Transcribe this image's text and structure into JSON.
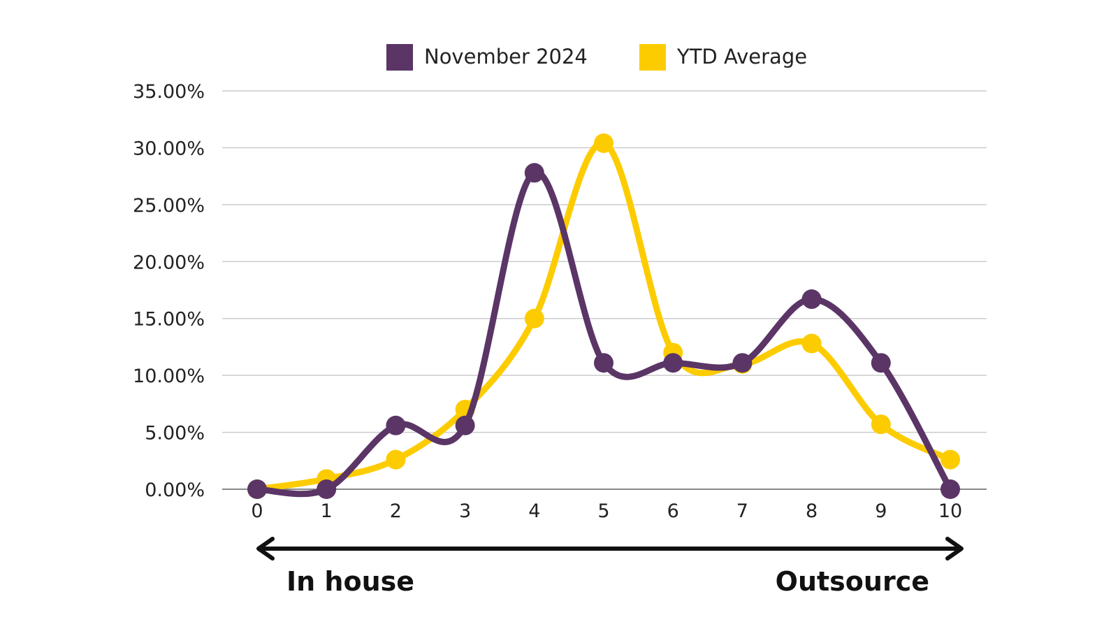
{
  "colors": {
    "november": "#5a3566",
    "ytd": "#fccc00",
    "grid": "#cccccc",
    "axis": "#888888",
    "arrow": "#111111"
  },
  "chart_data": {
    "type": "line",
    "smooth": true,
    "x": [
      0,
      1,
      2,
      3,
      4,
      5,
      6,
      7,
      8,
      9,
      10
    ],
    "series": [
      {
        "name": "November 2024",
        "color": "#5a3566",
        "values": [
          0.0,
          0.0,
          5.6,
          5.6,
          27.8,
          11.1,
          11.1,
          11.1,
          16.7,
          11.1,
          0.0
        ]
      },
      {
        "name": "YTD Average",
        "color": "#fccc00",
        "values": [
          0.0,
          0.9,
          2.6,
          7.0,
          15.0,
          30.4,
          12.0,
          11.0,
          12.8,
          5.7,
          2.6
        ]
      }
    ],
    "y_ticks": [
      "0.00%",
      "5.00%",
      "10.00%",
      "15.00%",
      "20.00%",
      "25.00%",
      "30.00%",
      "35.00%"
    ],
    "x_ticks": [
      "0",
      "1",
      "2",
      "3",
      "4",
      "5",
      "6",
      "7",
      "8",
      "9",
      "10"
    ],
    "ylim": [
      0,
      35
    ],
    "xlim": [
      0,
      10
    ],
    "grid": true,
    "legend_position": "top-center"
  },
  "scale": {
    "left_label": "In house",
    "right_label": "Outsource"
  }
}
